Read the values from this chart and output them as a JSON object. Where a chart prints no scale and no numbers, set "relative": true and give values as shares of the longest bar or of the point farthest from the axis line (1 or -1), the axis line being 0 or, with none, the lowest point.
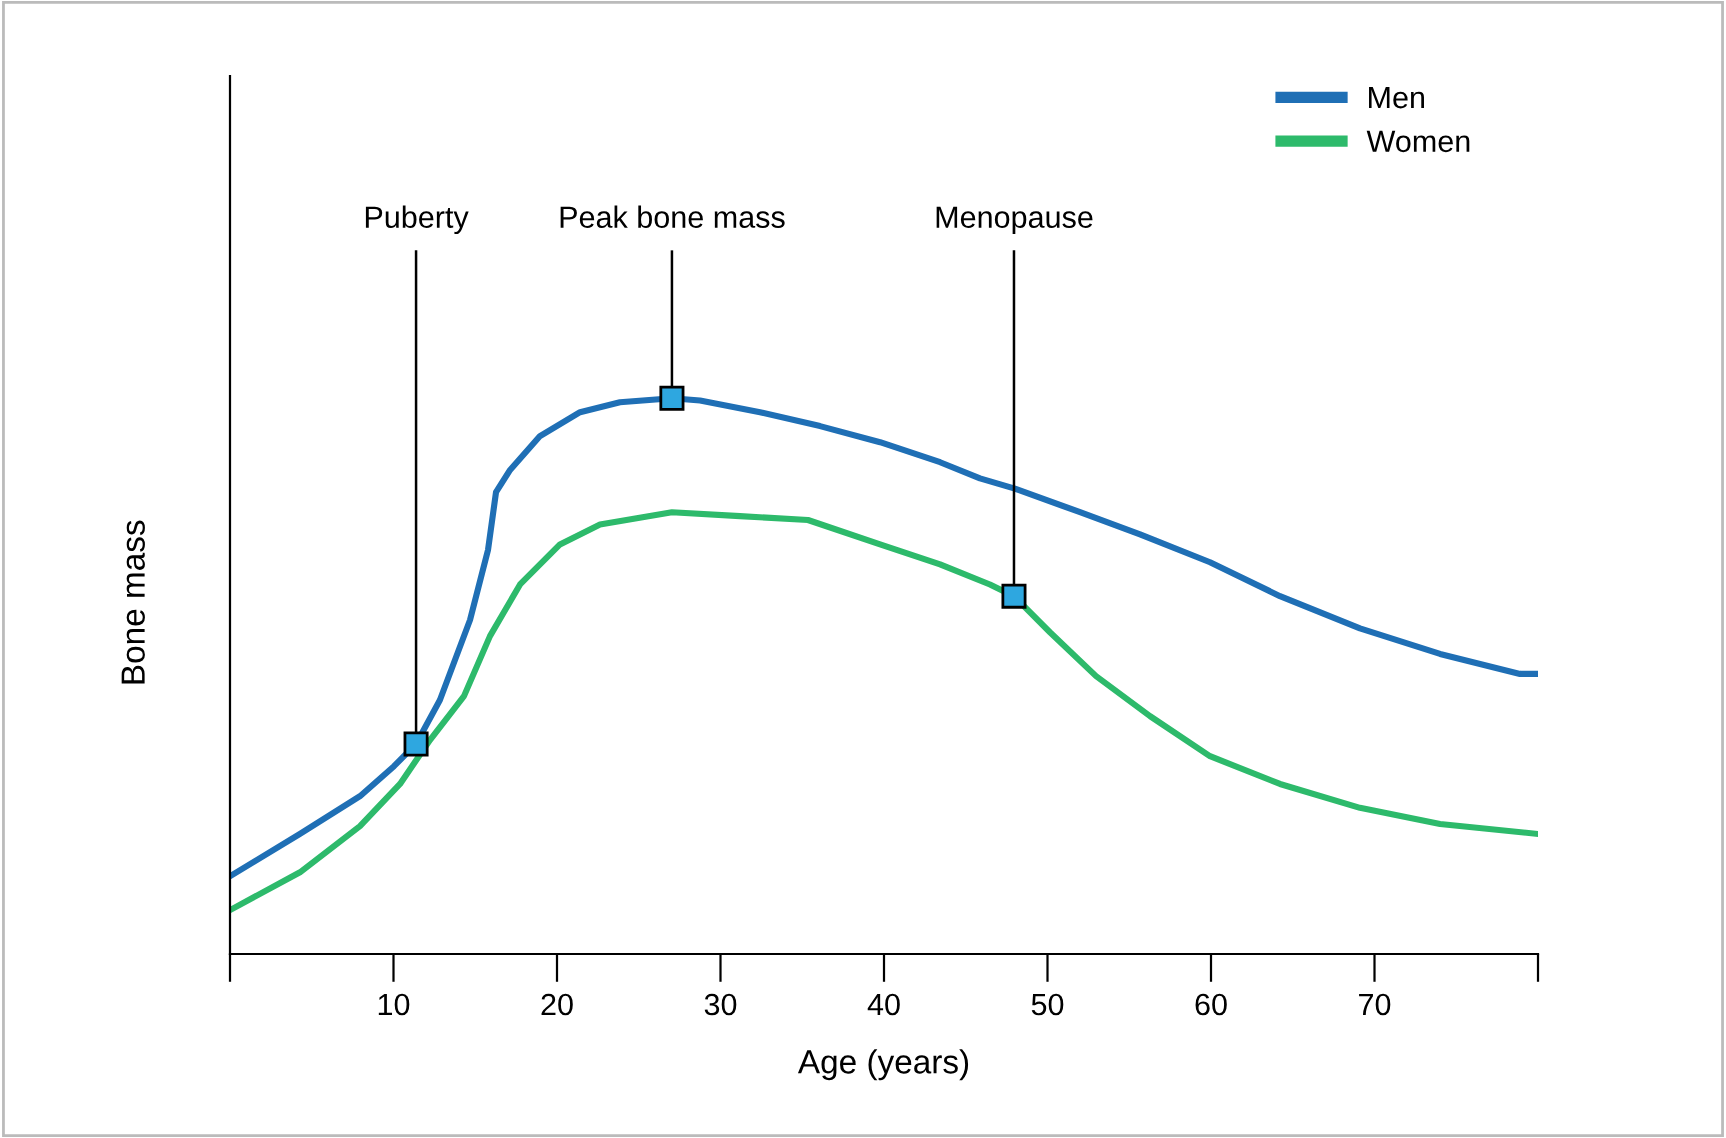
{
  "chart_data": {
    "type": "line",
    "relative": true,
    "xlabel": "Age (years)",
    "ylabel": "Bone mass",
    "xlim": [
      0,
      80
    ],
    "xticks": [
      {
        "value": 0,
        "label": null
      },
      10,
      20,
      30,
      40,
      50,
      60,
      70,
      {
        "value": 80,
        "label": null
      }
    ],
    "legend": "top right",
    "grid": false,
    "marker": "none",
    "line_style": "solid",
    "series": [
      {
        "name": "Men",
        "color": "#1f6fb5",
        "x": [
          0,
          4.28,
          7.95,
          10.03,
          11.38,
          12.84,
          14.68,
          15.78,
          16.27,
          17.13,
          18.96,
          21.41,
          23.85,
          27.03,
          28.75,
          32.42,
          36.09,
          39.76,
          43.43,
          45.87,
          47.95,
          51.99,
          55.66,
          59.94,
          64.22,
          69.11,
          74.01,
          78.9,
          80
        ],
        "values": [
          0.14,
          0.216,
          0.284,
          0.338,
          0.378,
          0.457,
          0.601,
          0.727,
          0.831,
          0.871,
          0.932,
          0.975,
          0.993,
          1.0,
          0.996,
          0.975,
          0.95,
          0.921,
          0.885,
          0.856,
          0.838,
          0.795,
          0.755,
          0.705,
          0.644,
          0.586,
          0.54,
          0.504,
          0.504
        ]
      },
      {
        "name": "Women",
        "color": "#2dba6b",
        "x": [
          0,
          4.28,
          7.95,
          10.4,
          12.23,
          14.31,
          15.9,
          17.74,
          20.18,
          22.63,
          27.03,
          31.19,
          35.35,
          39.76,
          43.43,
          46.48,
          47.95,
          50.15,
          52.97,
          56.27,
          59.94,
          64.22,
          69.11,
          74.01,
          80
        ],
        "values": [
          0.079,
          0.147,
          0.23,
          0.306,
          0.385,
          0.464,
          0.572,
          0.665,
          0.737,
          0.773,
          0.795,
          0.788,
          0.781,
          0.737,
          0.701,
          0.665,
          0.644,
          0.579,
          0.5,
          0.428,
          0.356,
          0.306,
          0.263,
          0.234,
          0.216
        ]
      }
    ],
    "annotations": [
      {
        "text": "Puberty",
        "x": 11.38,
        "y": 0.378
      },
      {
        "text": "Peak bone mass",
        "x": 27.03,
        "y": 1.0
      },
      {
        "text": "Menopause",
        "x": 47.95,
        "y": 0.644
      }
    ]
  }
}
